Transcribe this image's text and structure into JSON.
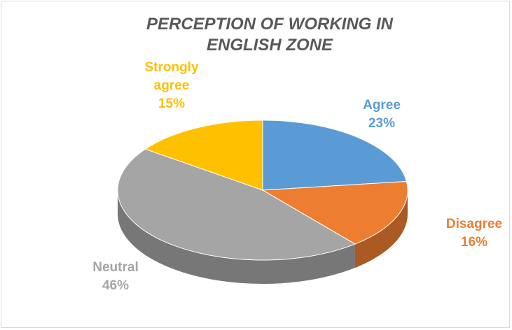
{
  "chart_data": {
    "type": "pie",
    "title": "PERCEPTION OF WORKING IN ENGLISH ZONE",
    "categories": [
      "Agree",
      "Disagree",
      "Neutral",
      "Strongly agree"
    ],
    "values": [
      23,
      16,
      46,
      15
    ],
    "value_labels": [
      "23%",
      "16%",
      "46%",
      "15%"
    ],
    "colors": [
      "#5b9bd5",
      "#ed7d31",
      "#a5a5a5",
      "#ffc000"
    ]
  }
}
